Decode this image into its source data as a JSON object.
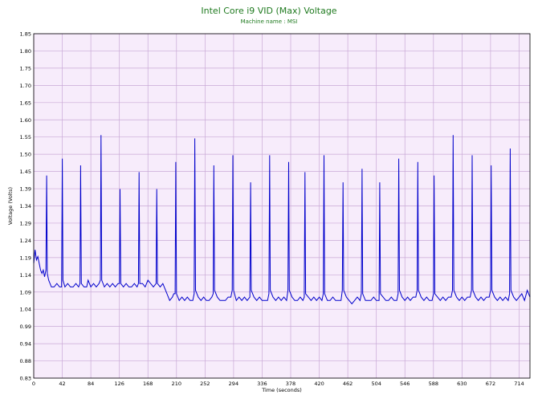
{
  "chart_data": {
    "type": "line",
    "title": "Intel Core i9 VID (Max) Voltage",
    "subtitle": "Machine name : MSI",
    "xlabel": "Time (seconds)",
    "ylabel": "Voltage (Volts)",
    "xlim": [
      0,
      730
    ],
    "ylim": [
      0.83,
      1.85
    ],
    "xticks": [
      "0",
      "42",
      "84",
      "126",
      "168",
      "210",
      "252",
      "294",
      "336",
      "378",
      "420",
      "462",
      "504",
      "546",
      "588",
      "630",
      "672",
      "714"
    ],
    "yticks": [
      "0.83",
      "0.88",
      "0.94",
      "0.99",
      "1.04",
      "1.09",
      "1.14",
      "1.19",
      "1.24",
      "1.29",
      "1.34",
      "1.39",
      "1.45",
      "1.50",
      "1.55",
      "1.60",
      "1.65",
      "1.70",
      "1.75",
      "1.80",
      "1.85"
    ],
    "grid": true,
    "background_color": "#f7ecfb",
    "grid_color": "#c9a9d6",
    "line_color": "#0000cc",
    "series": [
      {
        "values": [
          [
            0,
            1.17
          ],
          [
            2,
            1.21
          ],
          [
            4,
            1.18
          ],
          [
            6,
            1.19
          ],
          [
            8,
            1.17
          ],
          [
            10,
            1.15
          ],
          [
            12,
            1.14
          ],
          [
            14,
            1.15
          ],
          [
            16,
            1.13
          ],
          [
            18,
            1.15
          ],
          [
            19,
            1.43
          ],
          [
            20,
            1.14
          ],
          [
            22,
            1.12
          ],
          [
            24,
            1.11
          ],
          [
            26,
            1.1
          ],
          [
            30,
            1.1
          ],
          [
            34,
            1.11
          ],
          [
            38,
            1.1
          ],
          [
            41,
            1.1
          ],
          [
            42,
            1.48
          ],
          [
            43,
            1.12
          ],
          [
            46,
            1.1
          ],
          [
            50,
            1.11
          ],
          [
            54,
            1.1
          ],
          [
            58,
            1.1
          ],
          [
            62,
            1.11
          ],
          [
            66,
            1.1
          ],
          [
            68,
            1.11
          ],
          [
            69,
            1.46
          ],
          [
            70,
            1.11
          ],
          [
            74,
            1.1
          ],
          [
            78,
            1.1
          ],
          [
            80,
            1.12
          ],
          [
            84,
            1.1
          ],
          [
            88,
            1.11
          ],
          [
            92,
            1.1
          ],
          [
            96,
            1.11
          ],
          [
            98,
            1.12
          ],
          [
            99,
            1.55
          ],
          [
            100,
            1.12
          ],
          [
            104,
            1.1
          ],
          [
            108,
            1.11
          ],
          [
            112,
            1.1
          ],
          [
            116,
            1.11
          ],
          [
            120,
            1.1
          ],
          [
            124,
            1.11
          ],
          [
            126,
            1.11
          ],
          [
            127,
            1.39
          ],
          [
            128,
            1.11
          ],
          [
            132,
            1.1
          ],
          [
            136,
            1.11
          ],
          [
            140,
            1.1
          ],
          [
            144,
            1.1
          ],
          [
            148,
            1.11
          ],
          [
            152,
            1.1
          ],
          [
            154,
            1.11
          ],
          [
            155,
            1.44
          ],
          [
            156,
            1.11
          ],
          [
            160,
            1.11
          ],
          [
            164,
            1.1
          ],
          [
            168,
            1.12
          ],
          [
            172,
            1.11
          ],
          [
            176,
            1.1
          ],
          [
            180,
            1.11
          ],
          [
            181,
            1.39
          ],
          [
            182,
            1.11
          ],
          [
            186,
            1.1
          ],
          [
            190,
            1.11
          ],
          [
            194,
            1.09
          ],
          [
            198,
            1.07
          ],
          [
            200,
            1.06
          ],
          [
            204,
            1.07
          ],
          [
            206,
            1.08
          ],
          [
            208,
            1.08
          ],
          [
            209,
            1.47
          ],
          [
            210,
            1.08
          ],
          [
            214,
            1.06
          ],
          [
            218,
            1.07
          ],
          [
            222,
            1.06
          ],
          [
            226,
            1.07
          ],
          [
            230,
            1.06
          ],
          [
            234,
            1.06
          ],
          [
            236,
            1.08
          ],
          [
            237,
            1.54
          ],
          [
            238,
            1.09
          ],
          [
            242,
            1.07
          ],
          [
            246,
            1.06
          ],
          [
            250,
            1.07
          ],
          [
            254,
            1.06
          ],
          [
            258,
            1.06
          ],
          [
            262,
            1.07
          ],
          [
            264,
            1.08
          ],
          [
            265,
            1.46
          ],
          [
            266,
            1.09
          ],
          [
            270,
            1.07
          ],
          [
            274,
            1.06
          ],
          [
            278,
            1.06
          ],
          [
            282,
            1.06
          ],
          [
            286,
            1.07
          ],
          [
            290,
            1.07
          ],
          [
            292,
            1.09
          ],
          [
            293,
            1.49
          ],
          [
            294,
            1.09
          ],
          [
            298,
            1.06
          ],
          [
            302,
            1.07
          ],
          [
            306,
            1.06
          ],
          [
            310,
            1.07
          ],
          [
            314,
            1.06
          ],
          [
            318,
            1.07
          ],
          [
            319,
            1.41
          ],
          [
            320,
            1.09
          ],
          [
            324,
            1.07
          ],
          [
            328,
            1.06
          ],
          [
            332,
            1.07
          ],
          [
            336,
            1.06
          ],
          [
            340,
            1.06
          ],
          [
            344,
            1.06
          ],
          [
            346,
            1.08
          ],
          [
            347,
            1.49
          ],
          [
            348,
            1.09
          ],
          [
            352,
            1.07
          ],
          [
            356,
            1.06
          ],
          [
            360,
            1.07
          ],
          [
            364,
            1.06
          ],
          [
            368,
            1.07
          ],
          [
            372,
            1.06
          ],
          [
            374,
            1.09
          ],
          [
            375,
            1.47
          ],
          [
            376,
            1.09
          ],
          [
            380,
            1.07
          ],
          [
            384,
            1.06
          ],
          [
            388,
            1.06
          ],
          [
            392,
            1.07
          ],
          [
            396,
            1.06
          ],
          [
            398,
            1.07
          ],
          [
            399,
            1.44
          ],
          [
            400,
            1.08
          ],
          [
            404,
            1.07
          ],
          [
            408,
            1.06
          ],
          [
            412,
            1.07
          ],
          [
            416,
            1.06
          ],
          [
            420,
            1.07
          ],
          [
            424,
            1.06
          ],
          [
            426,
            1.08
          ],
          [
            427,
            1.49
          ],
          [
            428,
            1.08
          ],
          [
            432,
            1.06
          ],
          [
            436,
            1.06
          ],
          [
            440,
            1.07
          ],
          [
            444,
            1.06
          ],
          [
            448,
            1.06
          ],
          [
            452,
            1.06
          ],
          [
            454,
            1.09
          ],
          [
            455,
            1.41
          ],
          [
            456,
            1.09
          ],
          [
            460,
            1.07
          ],
          [
            464,
            1.06
          ],
          [
            468,
            1.05
          ],
          [
            472,
            1.06
          ],
          [
            476,
            1.07
          ],
          [
            480,
            1.06
          ],
          [
            482,
            1.08
          ],
          [
            483,
            1.45
          ],
          [
            484,
            1.08
          ],
          [
            488,
            1.06
          ],
          [
            492,
            1.06
          ],
          [
            496,
            1.06
          ],
          [
            500,
            1.07
          ],
          [
            504,
            1.06
          ],
          [
            508,
            1.06
          ],
          [
            509,
            1.41
          ],
          [
            510,
            1.08
          ],
          [
            514,
            1.07
          ],
          [
            518,
            1.06
          ],
          [
            522,
            1.06
          ],
          [
            526,
            1.07
          ],
          [
            530,
            1.06
          ],
          [
            534,
            1.06
          ],
          [
            536,
            1.08
          ],
          [
            537,
            1.48
          ],
          [
            538,
            1.09
          ],
          [
            542,
            1.07
          ],
          [
            546,
            1.06
          ],
          [
            550,
            1.07
          ],
          [
            554,
            1.06
          ],
          [
            558,
            1.07
          ],
          [
            562,
            1.07
          ],
          [
            564,
            1.09
          ],
          [
            565,
            1.47
          ],
          [
            566,
            1.09
          ],
          [
            570,
            1.07
          ],
          [
            574,
            1.06
          ],
          [
            578,
            1.07
          ],
          [
            582,
            1.06
          ],
          [
            586,
            1.06
          ],
          [
            588,
            1.08
          ],
          [
            589,
            1.43
          ],
          [
            590,
            1.08
          ],
          [
            594,
            1.07
          ],
          [
            598,
            1.06
          ],
          [
            602,
            1.07
          ],
          [
            606,
            1.06
          ],
          [
            610,
            1.07
          ],
          [
            614,
            1.07
          ],
          [
            616,
            1.09
          ],
          [
            617,
            1.55
          ],
          [
            618,
            1.09
          ],
          [
            622,
            1.07
          ],
          [
            626,
            1.06
          ],
          [
            630,
            1.07
          ],
          [
            634,
            1.06
          ],
          [
            638,
            1.07
          ],
          [
            642,
            1.07
          ],
          [
            644,
            1.09
          ],
          [
            645,
            1.49
          ],
          [
            646,
            1.09
          ],
          [
            650,
            1.07
          ],
          [
            654,
            1.06
          ],
          [
            658,
            1.07
          ],
          [
            662,
            1.06
          ],
          [
            666,
            1.07
          ],
          [
            670,
            1.07
          ],
          [
            672,
            1.09
          ],
          [
            673,
            1.46
          ],
          [
            674,
            1.09
          ],
          [
            678,
            1.07
          ],
          [
            682,
            1.06
          ],
          [
            686,
            1.07
          ],
          [
            690,
            1.06
          ],
          [
            694,
            1.07
          ],
          [
            698,
            1.06
          ],
          [
            700,
            1.08
          ],
          [
            701,
            1.51
          ],
          [
            702,
            1.09
          ],
          [
            706,
            1.07
          ],
          [
            710,
            1.06
          ],
          [
            714,
            1.07
          ],
          [
            718,
            1.08
          ],
          [
            722,
            1.06
          ],
          [
            726,
            1.09
          ],
          [
            730,
            1.07
          ]
        ]
      }
    ]
  }
}
